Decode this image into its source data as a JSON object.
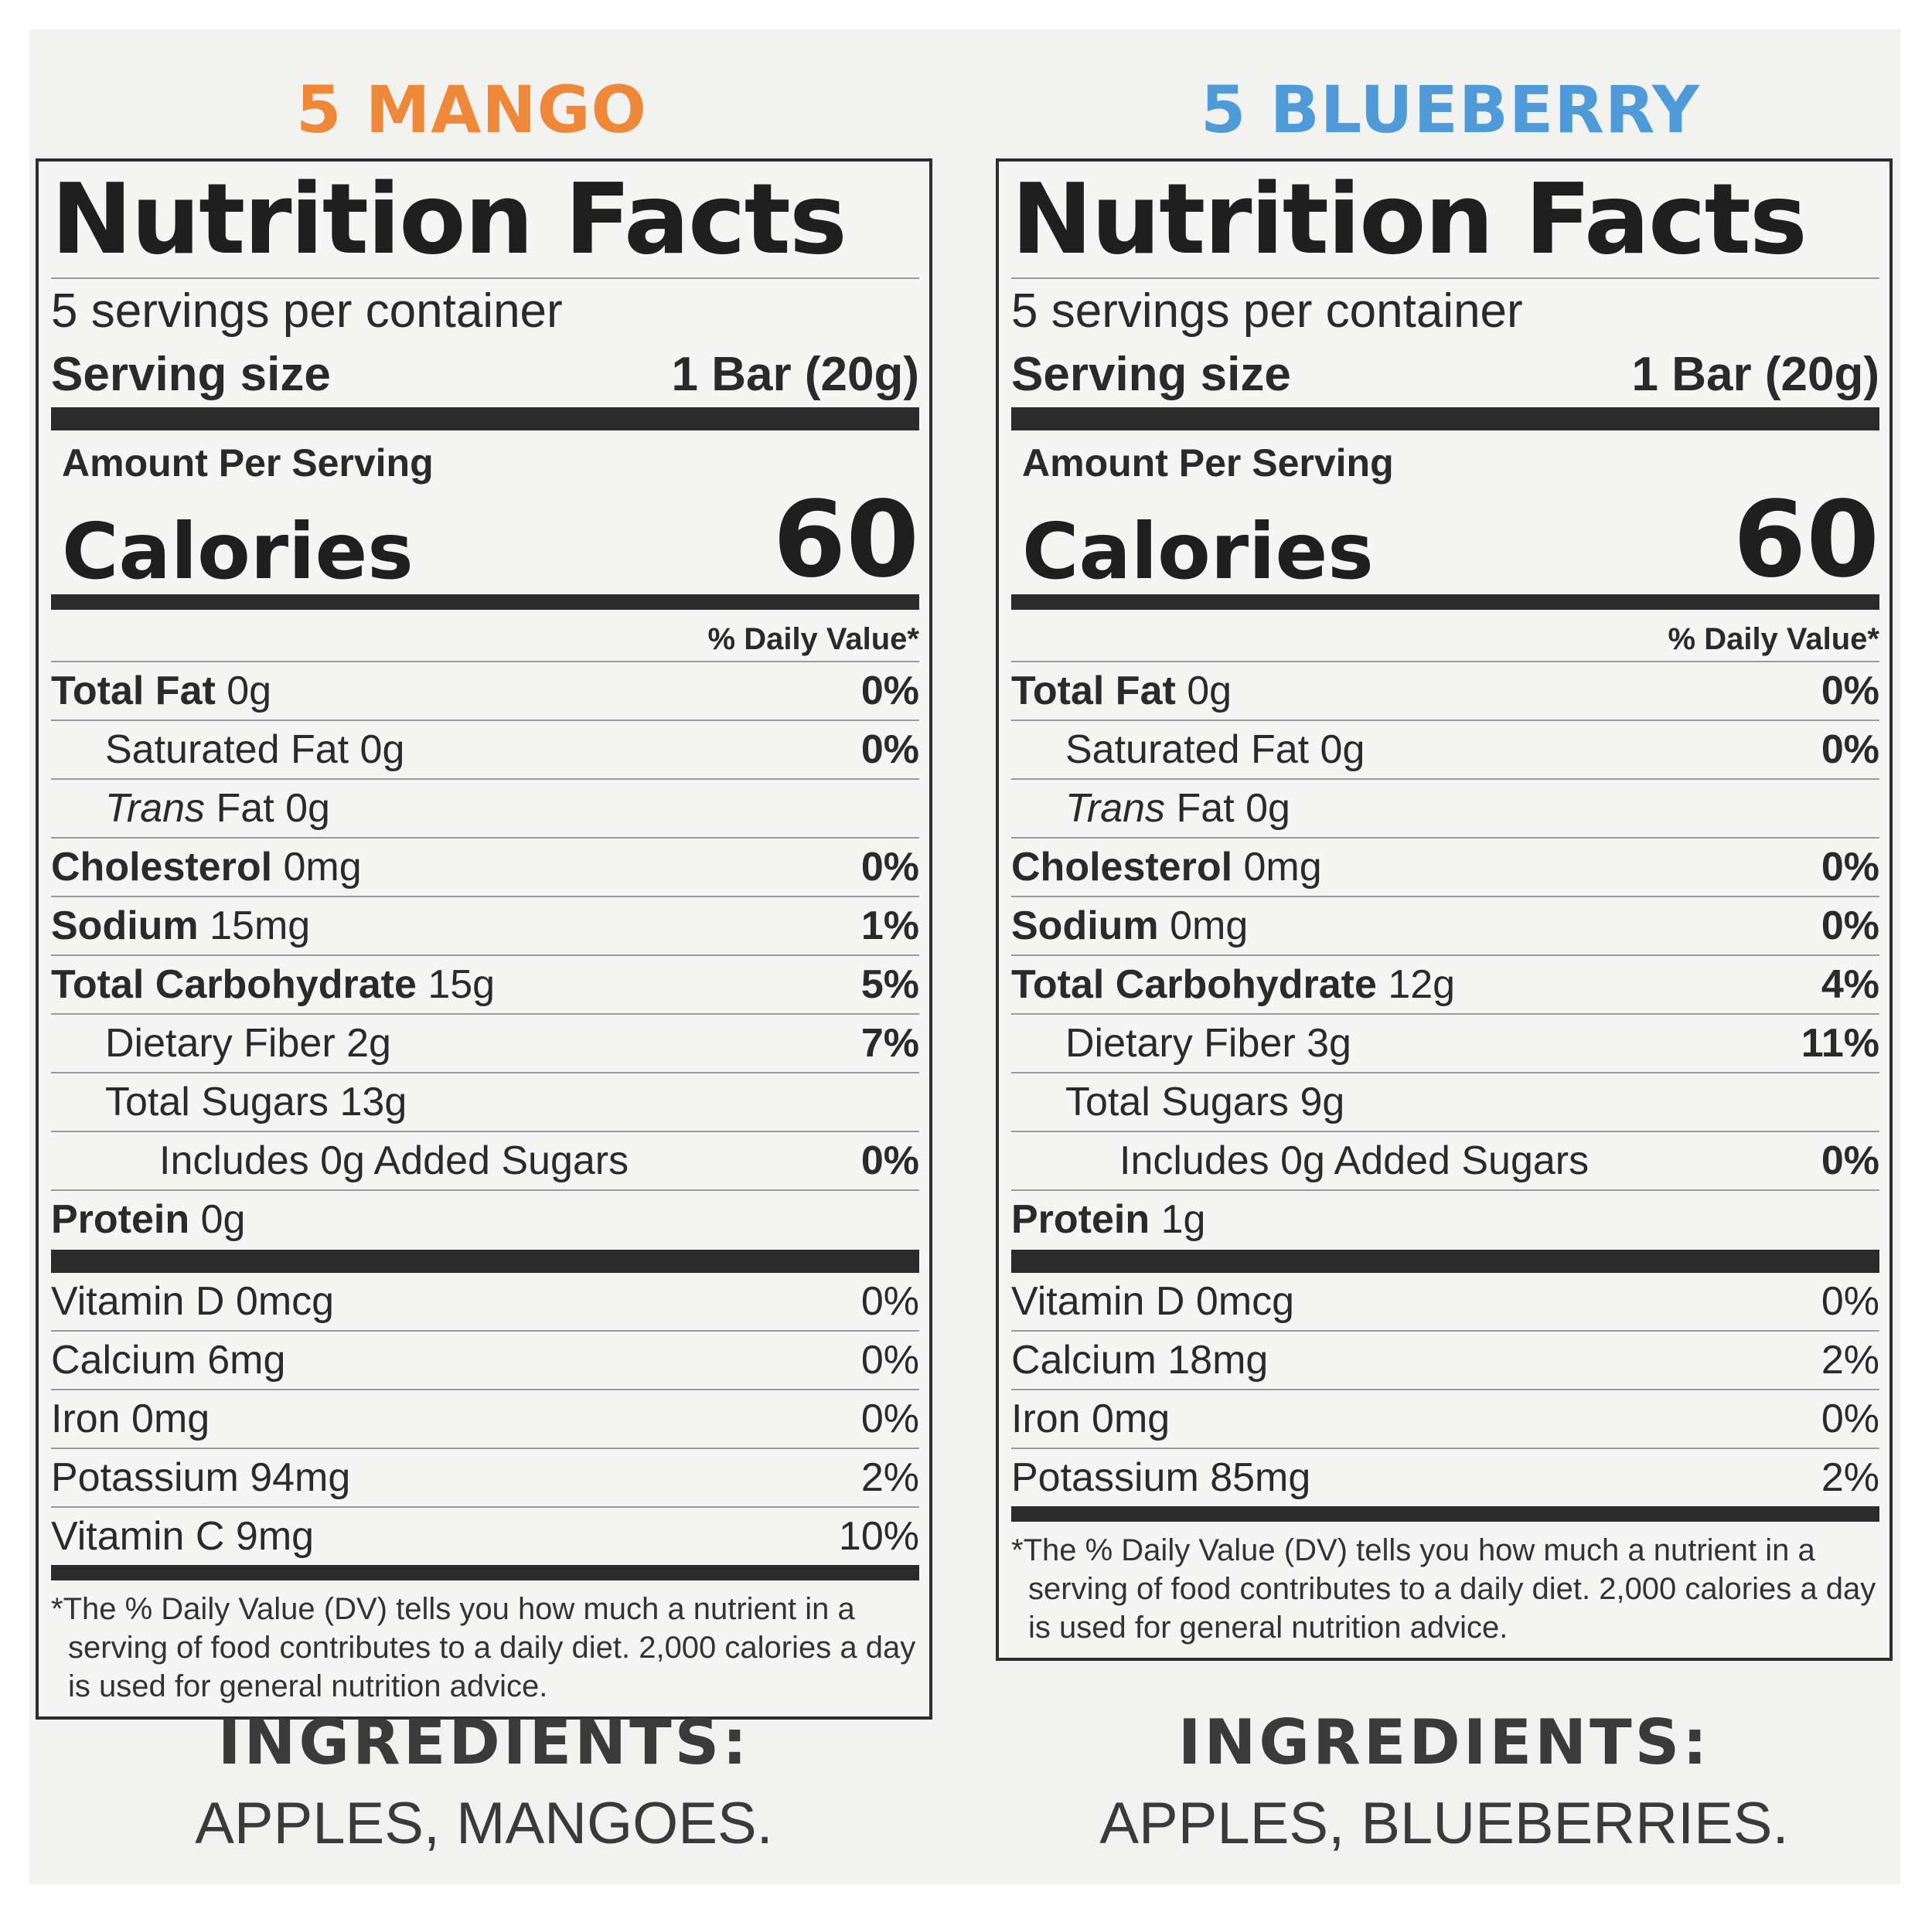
{
  "left": {
    "flavor": "5 MANGO",
    "flavor_color": "#f0883a",
    "title": "Nutrition Facts",
    "servings": "5 servings per container",
    "serving_size_label": "Serving size",
    "serving_size_value": "1 Bar (20g)",
    "amount_per_serving": "Amount Per Serving",
    "calories_label": "Calories",
    "calories_value": "60",
    "dv_header": "% Daily Value*",
    "nutrients": [
      {
        "bold": "Total Fat",
        "amount": " 0g",
        "pct": "0%"
      },
      {
        "label": "Saturated Fat 0g",
        "pct": "0%"
      },
      {
        "italic": "Trans",
        "rest": " Fat 0g",
        "pct": ""
      },
      {
        "bold": "Cholesterol",
        "amount": " 0mg",
        "pct": "0%"
      },
      {
        "bold": "Sodium",
        "amount": " 15mg",
        "pct": "1%"
      },
      {
        "bold": "Total Carbohydrate",
        "amount": " 15g",
        "pct": "5%"
      },
      {
        "label": "Dietary Fiber 2g",
        "pct": "7%"
      },
      {
        "label": "Total Sugars 13g",
        "pct": ""
      },
      {
        "label": "Includes 0g Added Sugars",
        "pct": "0%"
      },
      {
        "bold": "Protein",
        "amount": " 0g",
        "pct": ""
      }
    ],
    "vitamins": [
      {
        "label": "Vitamin D 0mcg",
        "pct": "0%"
      },
      {
        "label": "Calcium 6mg",
        "pct": "0%"
      },
      {
        "label": "Iron 0mg",
        "pct": "0%"
      },
      {
        "label": "Potassium 94mg",
        "pct": "2%"
      },
      {
        "label": "Vitamin C 9mg",
        "pct": "10%"
      }
    ],
    "footnote_star": "*",
    "footnote": "The % Daily Value (DV) tells you how much a nutrient in a serving of food contributes to a daily diet. 2,000 calories a day is used for general nutrition advice.",
    "ingredients_title": "INGREDIENTS:",
    "ingredients": "APPLES, MANGOES."
  },
  "right": {
    "flavor": "5 BLUEBERRY",
    "flavor_color": "#4f9ad8",
    "title": "Nutrition Facts",
    "servings": "5 servings per container",
    "serving_size_label": "Serving size",
    "serving_size_value": "1 Bar (20g)",
    "amount_per_serving": "Amount Per Serving",
    "calories_label": "Calories",
    "calories_value": "60",
    "dv_header": "% Daily Value*",
    "nutrients": [
      {
        "bold": "Total Fat",
        "amount": " 0g",
        "pct": "0%"
      },
      {
        "label": "Saturated Fat 0g",
        "pct": "0%"
      },
      {
        "italic": "Trans",
        "rest": " Fat 0g",
        "pct": ""
      },
      {
        "bold": "Cholesterol",
        "amount": " 0mg",
        "pct": "0%"
      },
      {
        "bold": "Sodium",
        "amount": " 0mg",
        "pct": "0%"
      },
      {
        "bold": "Total Carbohydrate",
        "amount": " 12g",
        "pct": "4%"
      },
      {
        "label": "Dietary Fiber 3g",
        "pct": "11%"
      },
      {
        "label": "Total Sugars 9g",
        "pct": ""
      },
      {
        "label": "Includes 0g Added Sugars",
        "pct": "0%"
      },
      {
        "bold": "Protein",
        "amount": " 1g",
        "pct": ""
      }
    ],
    "vitamins": [
      {
        "label": "Vitamin D 0mcg",
        "pct": "0%"
      },
      {
        "label": "Calcium 18mg",
        "pct": "2%"
      },
      {
        "label": "Iron 0mg",
        "pct": "0%"
      },
      {
        "label": "Potassium 85mg",
        "pct": "2%"
      }
    ],
    "footnote_star": "*",
    "footnote": "The % Daily Value (DV) tells you how much a nutrient in a serving of food contributes to a daily diet. 2,000 calories a day is used for general nutrition advice.",
    "ingredients_title": "INGREDIENTS:",
    "ingredients": "APPLES, BLUEBERRIES."
  }
}
